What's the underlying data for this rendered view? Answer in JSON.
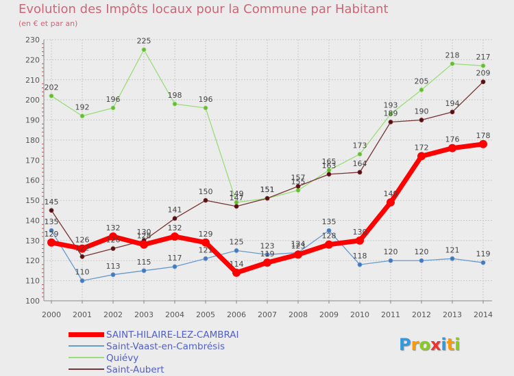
{
  "header": {
    "title": "Evolution des Impôts locaux pour la Commune par Habitant",
    "subtitle": "(en € et par an)"
  },
  "logo": {
    "text": "Proxiti",
    "letters": [
      "P",
      "r",
      "o",
      "x",
      "i",
      "t",
      "i"
    ]
  },
  "chart_data": {
    "type": "line",
    "title": "Evolution des Impôts locaux pour la Commune par Habitant",
    "subtitle": "(en € et par an)",
    "xlabel": "",
    "ylabel": "",
    "ylim": [
      100,
      230
    ],
    "yticks": [
      100,
      110,
      120,
      130,
      140,
      150,
      160,
      170,
      180,
      190,
      200,
      210,
      220,
      230
    ],
    "grid": true,
    "legend_position": "bottom-left",
    "x": [
      "2000",
      "2001",
      "2002",
      "2003",
      "2004",
      "2005",
      "2006",
      "2007",
      "2008",
      "2009",
      "2010",
      "2011",
      "2012",
      "2013",
      "2014"
    ],
    "series": [
      {
        "name": "Saint-Vaast-en-Cambrésis",
        "color": "#6699cc",
        "values": [
          135,
          110,
          113,
          115,
          117,
          121,
          125,
          123,
          124,
          135,
          118,
          120,
          120,
          121,
          119
        ],
        "labels": [
          "135",
          "110",
          "113",
          "115",
          "117",
          "121",
          "125",
          "123",
          "124",
          "135",
          "118",
          "120",
          "120",
          "121",
          "119"
        ]
      },
      {
        "name": "Quiévy",
        "color": "#99dd77",
        "values": [
          202,
          192,
          196,
          225,
          198,
          196,
          149,
          151,
          155,
          165,
          173,
          193,
          205,
          218,
          217
        ],
        "labels": [
          "202",
          "192",
          "196",
          "225",
          "198",
          "196",
          "149",
          "151",
          "155",
          "165",
          "173",
          "193",
          "205",
          "218",
          "217"
        ]
      },
      {
        "name": "Saint-Aubert",
        "color": "#773333",
        "values": [
          145,
          122,
          126,
          130,
          141,
          150,
          147,
          151,
          157,
          163,
          164,
          189,
          190,
          194,
          209
        ],
        "labels": [
          "145",
          "122",
          "126",
          "130",
          "141",
          "150",
          "147",
          "151",
          "157",
          "163",
          "164",
          "189",
          "190",
          "194",
          "209"
        ]
      },
      {
        "name": "SAINT-HILAIRE-LEZ-CAMBRAI",
        "color": "#ff0000",
        "bold": true,
        "values": [
          129,
          126,
          132,
          128,
          132,
          129,
          114,
          119,
          123,
          128,
          130,
          149,
          172,
          176,
          178
        ],
        "labels": [
          "129",
          "126",
          "132",
          "128",
          "132",
          "129",
          "114",
          "119",
          "123",
          "128",
          "130",
          "149",
          "172",
          "176",
          "178"
        ]
      }
    ],
    "legend_order": [
      "SAINT-HILAIRE-LEZ-CAMBRAI",
      "Saint-Vaast-en-Cambrésis",
      "Quiévy",
      "Saint-Aubert"
    ]
  }
}
